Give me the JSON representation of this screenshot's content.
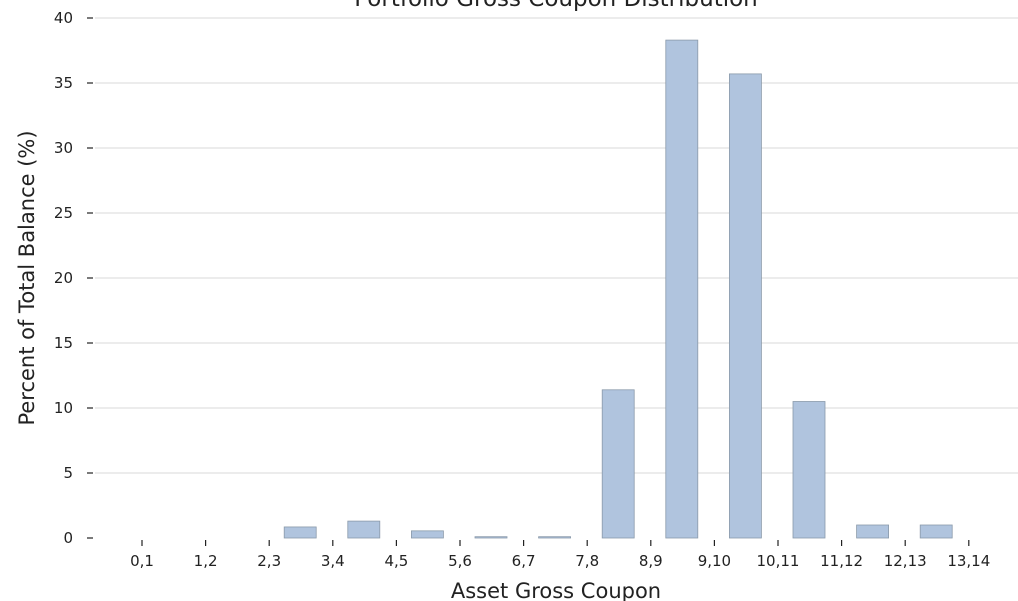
{
  "chart_data": {
    "type": "bar",
    "title": "Portfolio Gross Coupon Distribution",
    "xlabel": "Asset Gross Coupon",
    "ylabel": "Percent of Total Balance (%)",
    "categories": [
      "0,1",
      "1,2",
      "2,3",
      "3,4",
      "4,5",
      "5,6",
      "6,7",
      "7,8",
      "8,9",
      "9,10",
      "10,11",
      "11,12",
      "12,13",
      "13,14"
    ],
    "values": [
      0,
      0,
      0.85,
      1.3,
      0.55,
      0.1,
      0.1,
      11.4,
      38.3,
      35.7,
      10.5,
      1.0,
      1.0,
      0
    ],
    "ylim": [
      0,
      40
    ],
    "yticks": [
      0,
      5,
      10,
      15,
      20,
      25,
      30,
      35,
      40
    ],
    "grid": "horizontal",
    "legend": "none",
    "colors": {
      "bar_fill": "#b0c4de",
      "bar_edge": "#8a9aaa",
      "grid": "#ececec"
    }
  }
}
